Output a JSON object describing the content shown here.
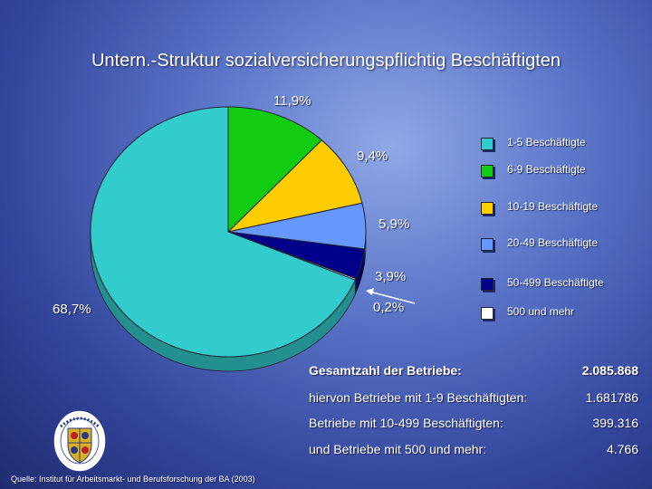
{
  "title": "Untern.-Struktur sozialversicherungspflichtig  Beschäftigten",
  "chart_data": {
    "type": "pie",
    "title": "Untern.-Struktur sozialversicherungspflichtig  Beschäftigten",
    "slices": [
      {
        "label": "1-5 Beschäftigte",
        "value": 68.7,
        "display": "68,7%",
        "color": "#33cccc"
      },
      {
        "label": "6-9 Beschäftigte",
        "value": 11.9,
        "display": "11,9%",
        "color": "#11cc11"
      },
      {
        "label": "10-19 Beschäftigte",
        "value": 9.4,
        "display": "9,4%",
        "color": "#ffcc00"
      },
      {
        "label": "20-49 Beschäftigte",
        "value": 5.9,
        "display": "5,9%",
        "color": "#6699ff"
      },
      {
        "label": "50-499 Beschäftigte",
        "value": 3.9,
        "display": "3,9%",
        "color": "#000088"
      },
      {
        "label": "500 und mehr",
        "value": 0.2,
        "display": "0,2%",
        "color": "#ffffff"
      }
    ],
    "legend_position": "right"
  },
  "stats": [
    {
      "label": "Gesamtzahl der Betriebe:",
      "value": "2.085.868"
    },
    {
      "label": "hiervon Betriebe mit 1-9 Beschäftigten:",
      "value": "1.681786"
    },
    {
      "label": "Betriebe mit 10-499 Beschäftigten:",
      "value": "399.316"
    },
    {
      "label": "und Betriebe mit 500 und mehr:",
      "value": "4.766"
    }
  ],
  "source": "Quelle: Institut für Arbeitsmarkt- und Berufsforschung der BA (2003)",
  "logo_text": "LANDKREIS MECKLENBURG-STRELITZ"
}
